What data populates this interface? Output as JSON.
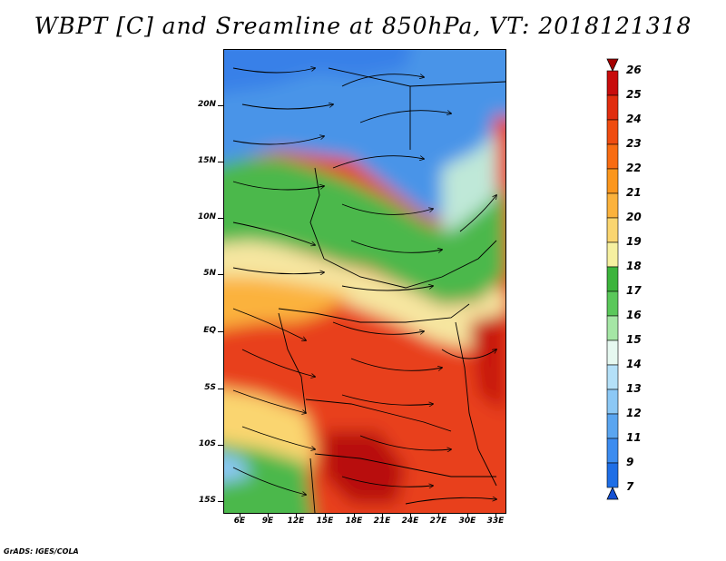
{
  "title": "WBPT [C] and Sreamline at 850hPa, VT: 2018121318",
  "footer": "GrADS: IGES/COLA",
  "map": {
    "lat_labels": [
      "20N",
      "15N",
      "10N",
      "5N",
      "EQ",
      "5S",
      "10S",
      "15S"
    ],
    "lon_labels": [
      "6E",
      "9E",
      "12E",
      "15E",
      "18E",
      "21E",
      "24E",
      "27E",
      "30E",
      "33E"
    ]
  },
  "colorbar": {
    "levels": [
      "26",
      "25",
      "24",
      "23",
      "22",
      "21",
      "20",
      "19",
      "18",
      "17",
      "16",
      "15",
      "14",
      "13",
      "12",
      "11",
      "9",
      "7"
    ],
    "colors": [
      "#a50000",
      "#c80c0c",
      "#e12d0f",
      "#ef4c10",
      "#f86c12",
      "#fb961d",
      "#fbb23c",
      "#fad570",
      "#f6f0a0",
      "#3cb43c",
      "#5ac85a",
      "#a5e6a5",
      "#e6f8f0",
      "#b4e0f8",
      "#8cc8f5",
      "#5aa5f0",
      "#3c8cf0",
      "#1e6ee6",
      "#1450d2"
    ]
  }
}
